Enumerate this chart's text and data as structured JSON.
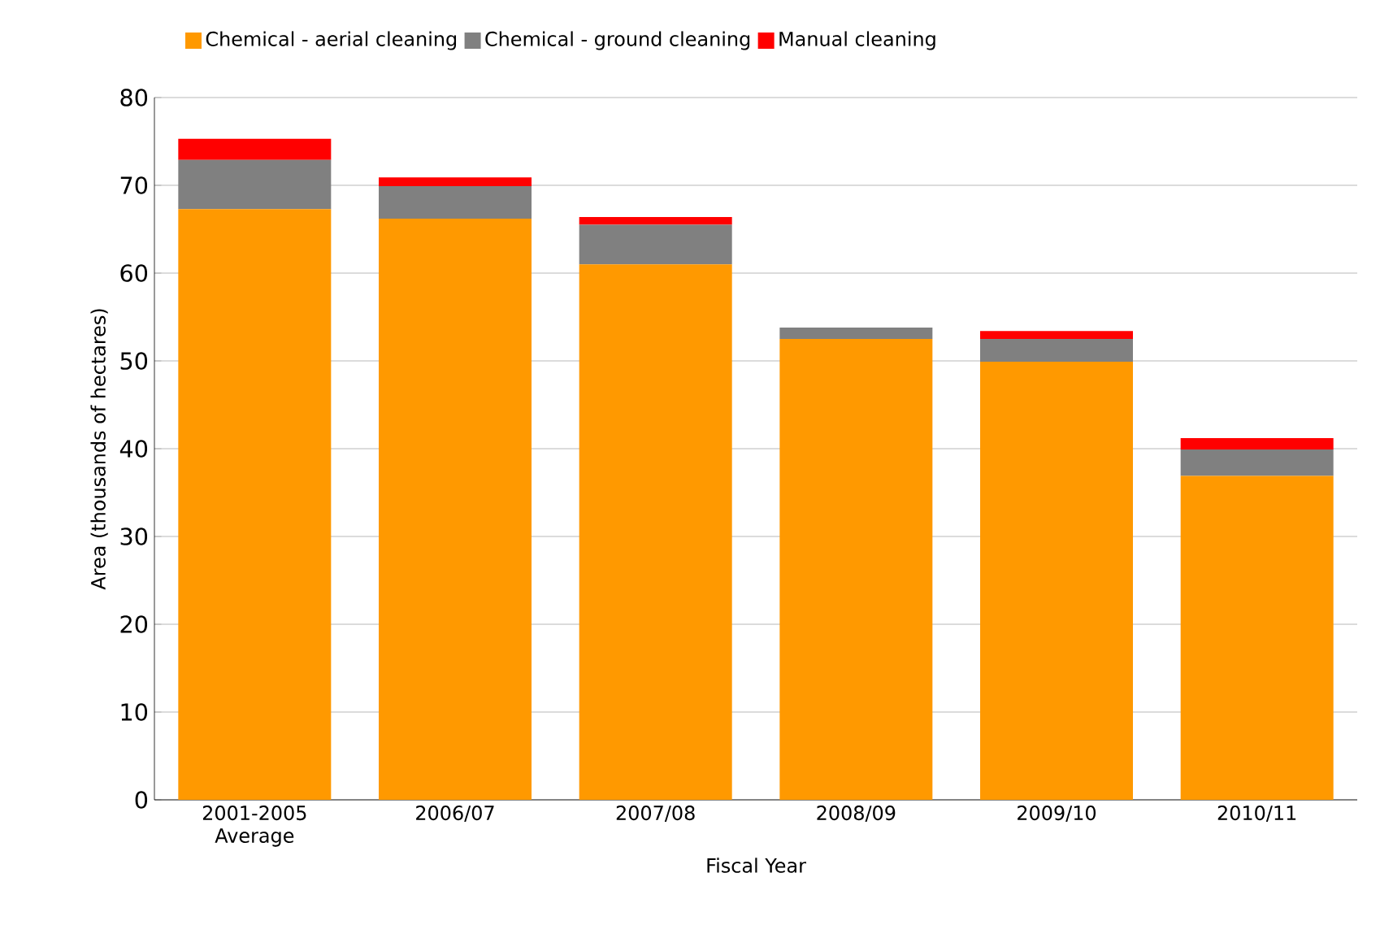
{
  "chart_data": {
    "type": "bar",
    "stacked": true,
    "xlabel": "Fiscal Year",
    "ylabel": "Area (thousands of hectares)",
    "categories": [
      "2001-2005 Average",
      "2006/07",
      "2007/08",
      "2008/09",
      "2009/10",
      "2010/11"
    ],
    "series": [
      {
        "name": "Chemical - aerial cleaning",
        "color": "#ff9900",
        "values": [
          67.3,
          66.2,
          61.0,
          52.5,
          49.9,
          36.9
        ]
      },
      {
        "name": "Chemical - ground cleaning",
        "color": "#808080",
        "values": [
          5.6,
          3.7,
          4.5,
          1.3,
          2.6,
          3.0
        ]
      },
      {
        "name": "Manual cleaning",
        "color": "#ff0000",
        "values": [
          2.4,
          1.0,
          0.9,
          0,
          0.9,
          1.3
        ]
      }
    ],
    "ylim": [
      0,
      80
    ],
    "yticks": [
      0,
      10,
      20,
      30,
      40,
      50,
      60,
      70,
      80
    ],
    "grid": "y",
    "legend": "top"
  }
}
